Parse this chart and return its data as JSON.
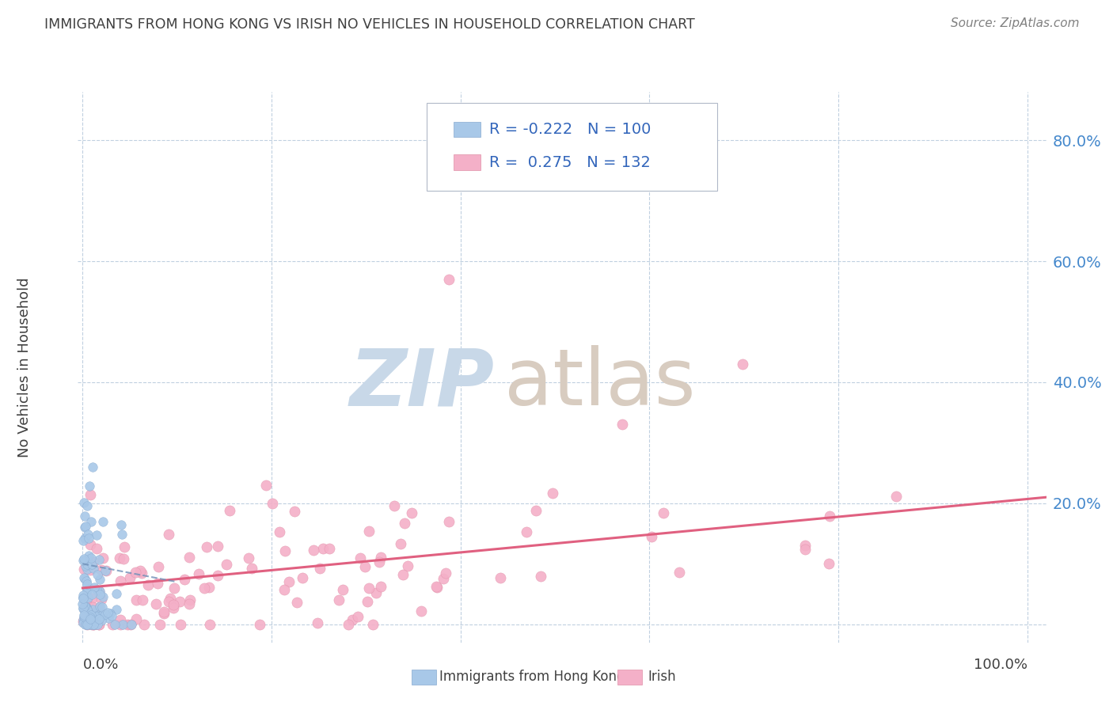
{
  "title": "IMMIGRANTS FROM HONG KONG VS IRISH NO VEHICLES IN HOUSEHOLD CORRELATION CHART",
  "source": "Source: ZipAtlas.com",
  "ylabel": "No Vehicles in Household",
  "hk_color": "#a8c8e8",
  "hk_edge_color": "#88aad0",
  "irish_color": "#f4b0c8",
  "irish_edge_color": "#e090a8",
  "hk_line_color": "#7090b8",
  "irish_line_color": "#e06080",
  "watermark_zip_color": "#c8d8e8",
  "watermark_atlas_color": "#d8ccc0",
  "background_color": "#ffffff",
  "grid_color": "#c0d0e0",
  "title_color": "#404040",
  "source_color": "#808080",
  "right_axis_color": "#4488cc",
  "legend_text_color": "#3366bb",
  "bottom_label_color": "#404040",
  "hk_R": -0.222,
  "hk_N": 100,
  "irish_R": 0.275,
  "irish_N": 132,
  "xlim": [
    -0.005,
    1.02
  ],
  "ylim": [
    -0.03,
    0.88
  ],
  "yticks": [
    0.0,
    0.2,
    0.4,
    0.6,
    0.8
  ],
  "ytick_labels_right": [
    "",
    "20.0%",
    "40.0%",
    "60.0%",
    "80.0%"
  ],
  "xtick_positions": [
    0.0,
    0.2,
    0.4,
    0.6,
    0.8,
    1.0
  ],
  "seed_hk": 42,
  "seed_irish": 99
}
